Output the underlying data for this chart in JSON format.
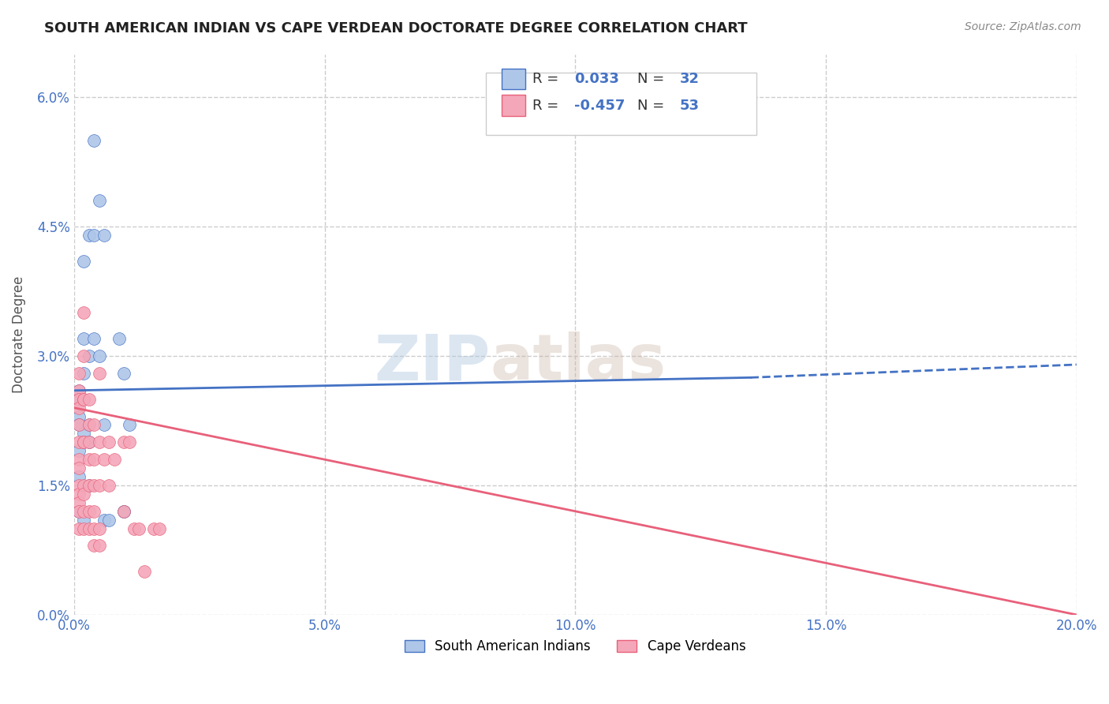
{
  "title": "SOUTH AMERICAN INDIAN VS CAPE VERDEAN DOCTORATE DEGREE CORRELATION CHART",
  "source": "Source: ZipAtlas.com",
  "xlabel_ticks": [
    "0.0%",
    "5.0%",
    "10.0%",
    "15.0%",
    "20.0%"
  ],
  "xlabel_tick_vals": [
    0.0,
    0.05,
    0.1,
    0.15,
    0.2
  ],
  "ylabel": "Doctorate Degree",
  "ylabel_ticks": [
    "0.0%",
    "1.5%",
    "3.0%",
    "4.5%",
    "6.0%"
  ],
  "ylabel_tick_vals": [
    0.0,
    0.015,
    0.03,
    0.045,
    0.06
  ],
  "xlim": [
    0.0,
    0.2
  ],
  "ylim": [
    0.0,
    0.065
  ],
  "blue_R": "0.033",
  "blue_N": "32",
  "pink_R": "-0.457",
  "pink_N": "53",
  "blue_color": "#aec6e8",
  "pink_color": "#f4a7b9",
  "blue_line_color": "#4472c4",
  "pink_line_color": "#e8607a",
  "watermark_zip": "ZIP",
  "watermark_atlas": "atlas",
  "background_color": "#ffffff",
  "grid_color": "#cccccc",
  "blue_scatter": [
    [
      0.001,
      0.026
    ],
    [
      0.001,
      0.025
    ],
    [
      0.001,
      0.023
    ],
    [
      0.001,
      0.022
    ],
    [
      0.001,
      0.019
    ],
    [
      0.001,
      0.016
    ],
    [
      0.001,
      0.012
    ],
    [
      0.002,
      0.041
    ],
    [
      0.002,
      0.032
    ],
    [
      0.002,
      0.028
    ],
    [
      0.002,
      0.021
    ],
    [
      0.002,
      0.02
    ],
    [
      0.002,
      0.011
    ],
    [
      0.003,
      0.044
    ],
    [
      0.003,
      0.03
    ],
    [
      0.003,
      0.022
    ],
    [
      0.003,
      0.02
    ],
    [
      0.003,
      0.015
    ],
    [
      0.004,
      0.055
    ],
    [
      0.004,
      0.044
    ],
    [
      0.004,
      0.032
    ],
    [
      0.005,
      0.048
    ],
    [
      0.005,
      0.03
    ],
    [
      0.006,
      0.044
    ],
    [
      0.006,
      0.022
    ],
    [
      0.006,
      0.011
    ],
    [
      0.007,
      0.011
    ],
    [
      0.009,
      0.032
    ],
    [
      0.01,
      0.028
    ],
    [
      0.01,
      0.012
    ],
    [
      0.01,
      0.012
    ],
    [
      0.011,
      0.022
    ]
  ],
  "pink_scatter": [
    [
      0.001,
      0.028
    ],
    [
      0.001,
      0.026
    ],
    [
      0.001,
      0.025
    ],
    [
      0.001,
      0.024
    ],
    [
      0.001,
      0.022
    ],
    [
      0.001,
      0.02
    ],
    [
      0.001,
      0.018
    ],
    [
      0.001,
      0.017
    ],
    [
      0.001,
      0.015
    ],
    [
      0.001,
      0.014
    ],
    [
      0.001,
      0.013
    ],
    [
      0.001,
      0.012
    ],
    [
      0.001,
      0.01
    ],
    [
      0.002,
      0.035
    ],
    [
      0.002,
      0.03
    ],
    [
      0.002,
      0.025
    ],
    [
      0.002,
      0.025
    ],
    [
      0.002,
      0.02
    ],
    [
      0.002,
      0.02
    ],
    [
      0.002,
      0.015
    ],
    [
      0.002,
      0.014
    ],
    [
      0.002,
      0.012
    ],
    [
      0.002,
      0.01
    ],
    [
      0.003,
      0.025
    ],
    [
      0.003,
      0.022
    ],
    [
      0.003,
      0.02
    ],
    [
      0.003,
      0.018
    ],
    [
      0.003,
      0.015
    ],
    [
      0.003,
      0.012
    ],
    [
      0.003,
      0.01
    ],
    [
      0.004,
      0.022
    ],
    [
      0.004,
      0.018
    ],
    [
      0.004,
      0.015
    ],
    [
      0.004,
      0.012
    ],
    [
      0.004,
      0.01
    ],
    [
      0.004,
      0.008
    ],
    [
      0.005,
      0.028
    ],
    [
      0.005,
      0.02
    ],
    [
      0.005,
      0.015
    ],
    [
      0.005,
      0.01
    ],
    [
      0.005,
      0.008
    ],
    [
      0.006,
      0.018
    ],
    [
      0.007,
      0.02
    ],
    [
      0.007,
      0.015
    ],
    [
      0.008,
      0.018
    ],
    [
      0.01,
      0.02
    ],
    [
      0.01,
      0.012
    ],
    [
      0.011,
      0.02
    ],
    [
      0.012,
      0.01
    ],
    [
      0.013,
      0.01
    ],
    [
      0.014,
      0.005
    ],
    [
      0.016,
      0.01
    ],
    [
      0.017,
      0.01
    ]
  ],
  "blue_line": [
    [
      0.0,
      0.026
    ],
    [
      0.135,
      0.0275
    ]
  ],
  "blue_line_dashed": [
    [
      0.135,
      0.0275
    ],
    [
      0.2,
      0.029
    ]
  ],
  "pink_line": [
    [
      0.0,
      0.024
    ],
    [
      0.2,
      0.0
    ]
  ],
  "legend_blue_label": "South American Indians",
  "legend_pink_label": "Cape Verdeans"
}
